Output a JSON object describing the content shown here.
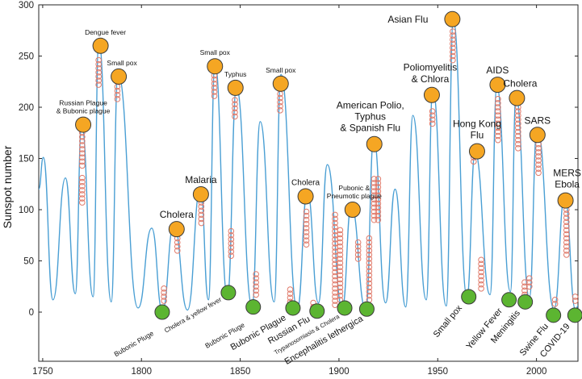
{
  "chart_data": {
    "type": "line",
    "ylabel": "Sunspot number",
    "xlim": [
      1748,
      2021
    ],
    "ylim": [
      -48,
      300
    ],
    "x_ticks": [
      1750,
      1800,
      1850,
      1900,
      1950,
      2000
    ],
    "x_tick_labels": [
      "1750",
      "1800",
      "1850",
      "1900",
      "1950",
      "2000"
    ],
    "y_ticks": [
      0,
      50,
      100,
      150,
      200,
      250,
      300
    ],
    "y_tick_labels": [
      "0",
      "50",
      "100",
      "150",
      "200",
      "250",
      "300"
    ],
    "colors": {
      "line": "#4a9fd4",
      "peak_marker": "#f5a623",
      "minimum_marker": "#5cb531",
      "ring": "#e07a6a"
    },
    "series": [
      {
        "type": "line",
        "cycle_peaks": [
          [
            1750.3,
            151
          ],
          [
            1761.5,
            131
          ],
          [
            1769.7,
            183
          ],
          [
            1778.4,
            265
          ],
          [
            1788.1,
            233
          ],
          [
            1805.2,
            82
          ],
          [
            1816.4,
            86
          ],
          [
            1829.9,
            122
          ],
          [
            1837.2,
            243
          ],
          [
            1848.1,
            219
          ],
          [
            1860.1,
            186
          ],
          [
            1870.6,
            232
          ],
          [
            1884.0,
            118
          ],
          [
            1894.1,
            144
          ],
          [
            1906.2,
            104
          ],
          [
            1917.6,
            170
          ],
          [
            1928.4,
            120
          ],
          [
            1937.4,
            192
          ],
          [
            1947.5,
            218
          ],
          [
            1957.9,
            285
          ],
          [
            1968.9,
            156
          ],
          [
            1979.9,
            220
          ],
          [
            1989.6,
            211
          ],
          [
            2000.3,
            180
          ],
          [
            2014.3,
            113
          ]
        ],
        "cycle_minima": [
          [
            1755.2,
            12
          ],
          [
            1766.5,
            18
          ],
          [
            1775.5,
            15
          ],
          [
            1784.7,
            10
          ],
          [
            1798.3,
            4
          ],
          [
            1810.6,
            1
          ],
          [
            1823.3,
            2
          ],
          [
            1833.9,
            12
          ],
          [
            1843.5,
            15
          ],
          [
            1856.0,
            6
          ],
          [
            1867.2,
            10
          ],
          [
            1878.9,
            3
          ],
          [
            1889.6,
            9
          ],
          [
            1901.7,
            4
          ],
          [
            1913.6,
            2
          ],
          [
            1923.6,
            9
          ],
          [
            1933.8,
            5
          ],
          [
            1944.2,
            12
          ],
          [
            1954.3,
            6
          ],
          [
            1964.8,
            15
          ],
          [
            1976.5,
            17
          ],
          [
            1986.8,
            20
          ],
          [
            1996.4,
            14
          ],
          [
            2008.9,
            3
          ],
          [
            2019.8,
            2
          ]
        ]
      }
    ],
    "peak_annotations": [
      {
        "label": "Russian Plague\n& Bubonic plague",
        "x": 1770.5,
        "y": 183
      },
      {
        "label": "Dengue fever",
        "x": 1779.3,
        "y": 260
      },
      {
        "label": "Small pox",
        "x": 1788.5,
        "y": 230
      },
      {
        "label": "Cholera",
        "x": 1817.8,
        "y": 81
      },
      {
        "label": "Malaria",
        "x": 1830.1,
        "y": 115
      },
      {
        "label": "Small pox",
        "x": 1837.2,
        "y": 240
      },
      {
        "label": "Typhus",
        "x": 1847.6,
        "y": 219
      },
      {
        "label": "Small pox",
        "x": 1870.5,
        "y": 223
      },
      {
        "label": "Cholera",
        "x": 1883.1,
        "y": 113
      },
      {
        "label": "Pubonic &\nPneumotic plague",
        "x": 1906.9,
        "y": 100
      },
      {
        "label": "American Polio,\nTyphus\n& Spanish Flu",
        "x": 1917.9,
        "y": 164
      },
      {
        "label": "Poliomyelitis\n& Chlora",
        "x": 1947.0,
        "y": 212
      },
      {
        "label": "Asian Flu",
        "x": 1957.4,
        "y": 286
      },
      {
        "label": "Hong Kong\nFlu",
        "x": 1969.9,
        "y": 157
      },
      {
        "label": "AIDS",
        "x": 1980.3,
        "y": 222
      },
      {
        "label": "Cholera",
        "x": 1990.1,
        "y": 209
      },
      {
        "label": "SARS",
        "x": 2000.5,
        "y": 173
      },
      {
        "label": "MERS\nEbola",
        "x": 2014.7,
        "y": 109
      }
    ],
    "minimum_annotations": [
      {
        "label": "Bubonic Pluge",
        "x": 1810.5,
        "y": 0
      },
      {
        "label": "Cholera & yellow fever",
        "x": 1844.0,
        "y": 19
      },
      {
        "label": "Bubonic Pluge",
        "x": 1856.6,
        "y": 5
      },
      {
        "label": "Bubonic Plague",
        "x": 1876.7,
        "y": 4
      },
      {
        "label": "Russian Flu",
        "x": 1888.9,
        "y": 1
      },
      {
        "label": "Trypanosomiasis & Cholera",
        "x": 1902.9,
        "y": 4
      },
      {
        "label": "Encephalitis lethergica",
        "x": 1914.1,
        "y": 3
      },
      {
        "label": "Small pox",
        "x": 1965.7,
        "y": 15
      },
      {
        "label": "Yellow Fever",
        "x": 1986.1,
        "y": 12
      },
      {
        "label": "Meningitis",
        "x": 1994.3,
        "y": 10
      },
      {
        "label": "Swine Flu",
        "x": 2008.6,
        "y": -3
      },
      {
        "label": "COVID-19",
        "x": 2019.5,
        "y": -3
      }
    ],
    "outbreak_rings": [
      {
        "x": 1770.0,
        "y_values": [
          175,
          171,
          167,
          163,
          159,
          155,
          151,
          147,
          143,
          131,
          127,
          123,
          119,
          115,
          111,
          107
        ]
      },
      {
        "x": 1778.3,
        "y_values": [
          246,
          242,
          238,
          234,
          230,
          226,
          222
        ]
      },
      {
        "x": 1787.8,
        "y_values": [
          220,
          216,
          212,
          208
        ]
      },
      {
        "x": 1811.4,
        "y_values": [
          23,
          19,
          15,
          11
        ]
      },
      {
        "x": 1818.2,
        "y_values": [
          72,
          68,
          64,
          60
        ]
      },
      {
        "x": 1830.3,
        "y_values": [
          107,
          103,
          99,
          95,
          91,
          87
        ]
      },
      {
        "x": 1836.9,
        "y_values": [
          231,
          227,
          223,
          219,
          215,
          211
        ]
      },
      {
        "x": 1845.4,
        "y_values": [
          79,
          75,
          71,
          67,
          63,
          59,
          55
        ]
      },
      {
        "x": 1847.3,
        "y_values": [
          207,
          203,
          199,
          195,
          191
        ]
      },
      {
        "x": 1858.0,
        "y_values": [
          37,
          33,
          29,
          25,
          21,
          17
        ]
      },
      {
        "x": 1870.2,
        "y_values": [
          213,
          209,
          205,
          201,
          197
        ]
      },
      {
        "x": 1875.3,
        "y_values": [
          22,
          18,
          14,
          10
        ]
      },
      {
        "x": 1883.5,
        "y_values": [
          98,
          94,
          90,
          86,
          82,
          78,
          74,
          70,
          66
        ]
      },
      {
        "x": 1887.0,
        "y_values": [
          9,
          5
        ]
      },
      {
        "x": 1898.0,
        "y_values": [
          95,
          91,
          87,
          83,
          79,
          75,
          71,
          67,
          63,
          59,
          55,
          51,
          47,
          43,
          39,
          35,
          31,
          27,
          23,
          19,
          15,
          11,
          7
        ]
      },
      {
        "x": 1900.6,
        "y_values": [
          80,
          76,
          72,
          68,
          64,
          60,
          56,
          52,
          48,
          44,
          40,
          36,
          32,
          28,
          24,
          20,
          16,
          12
        ]
      },
      {
        "x": 1909.7,
        "y_values": [
          68,
          64,
          60,
          56,
          52
        ]
      },
      {
        "x": 1915.3,
        "y_values": [
          72,
          68,
          64,
          60,
          56,
          52,
          48,
          44,
          40,
          36,
          32,
          28,
          24,
          20,
          16,
          12
        ]
      },
      {
        "x": 1917.8,
        "y_values": [
          130,
          126,
          122,
          118,
          114,
          110,
          106,
          102,
          98,
          94,
          90
        ]
      },
      {
        "x": 1919.8,
        "y_values": [
          130,
          126,
          122,
          118,
          114,
          110,
          106,
          102,
          98,
          94,
          90
        ]
      },
      {
        "x": 1947.3,
        "y_values": [
          196,
          192,
          188,
          184
        ]
      },
      {
        "x": 1957.6,
        "y_values": [
          274,
          270,
          266,
          262,
          258,
          254,
          250,
          246
        ]
      },
      {
        "x": 1968.2,
        "y_values": [
          151,
          147
        ]
      },
      {
        "x": 1972.0,
        "y_values": [
          51,
          47,
          43,
          39,
          35,
          31,
          27,
          23
        ]
      },
      {
        "x": 1980.5,
        "y_values": [
          208,
          204,
          200,
          196,
          192,
          188,
          184,
          180,
          176,
          172,
          168
        ]
      },
      {
        "x": 1990.7,
        "y_values": [
          200,
          196,
          192,
          188,
          184,
          180,
          176,
          172,
          168,
          164,
          160
        ]
      },
      {
        "x": 1994.0,
        "y_values": [
          29,
          25,
          21,
          17
        ]
      },
      {
        "x": 1996.4,
        "y_values": [
          33,
          29,
          25
        ]
      },
      {
        "x": 2001.0,
        "y_values": [
          164,
          160,
          156,
          152,
          148,
          144,
          140,
          136
        ]
      },
      {
        "x": 2009.4,
        "y_values": [
          12,
          8
        ]
      },
      {
        "x": 2015.2,
        "y_values": [
          100,
          96,
          92,
          88,
          84,
          80,
          76,
          72,
          68,
          64,
          60,
          56
        ]
      },
      {
        "x": 2019.6,
        "y_values": [
          15,
          11
        ]
      }
    ]
  }
}
